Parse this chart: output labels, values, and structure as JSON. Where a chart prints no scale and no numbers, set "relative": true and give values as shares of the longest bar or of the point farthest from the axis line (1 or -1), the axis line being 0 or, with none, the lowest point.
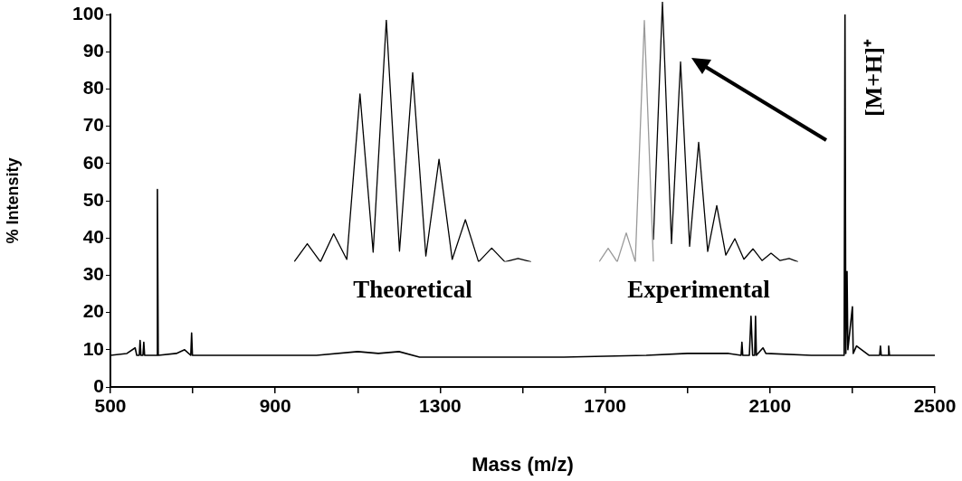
{
  "chart_data": [
    {
      "type": "line",
      "xlabel": "Mass (m/z)",
      "ylabel": "% Intensity",
      "xlim": [
        500,
        2500
      ],
      "ylim": [
        0,
        100
      ],
      "xticks": [
        500,
        {
          "value": 700,
          "label": null
        },
        900,
        {
          "value": 1100,
          "label": null
        },
        1300,
        {
          "value": 1500,
          "label": null
        },
        1700,
        {
          "value": 1900,
          "label": null
        },
        2100,
        {
          "value": 2300,
          "label": null
        },
        2500
      ],
      "yticks": [
        0,
        10,
        20,
        30,
        40,
        50,
        60,
        70,
        80,
        90,
        100
      ],
      "x": [
        500,
        540,
        560,
        564,
        570,
        572,
        574,
        579,
        581,
        583,
        612,
        614,
        616,
        660,
        680,
        695,
        697,
        699,
        800,
        900,
        1000,
        1100,
        1150,
        1200,
        1250,
        1400,
        1600,
        1800,
        1900,
        2000,
        2030,
        2032,
        2034,
        2050,
        2054,
        2058,
        2063,
        2065,
        2067,
        2083,
        2090,
        2200,
        2280,
        2282,
        2284,
        2287,
        2289,
        2300,
        2302,
        2310,
        2340,
        2366,
        2368,
        2370,
        2386,
        2388,
        2390,
        2450,
        2500
      ],
      "series": [
        {
          "color": "#000000",
          "values": [
            8.5,
            9,
            10.5,
            8.5,
            8.5,
            12.5,
            8.5,
            8.5,
            12,
            8.5,
            8.5,
            53,
            8.5,
            9,
            10,
            8.5,
            14.5,
            8.5,
            8.5,
            8.5,
            8.5,
            9.5,
            9,
            9.5,
            8,
            8,
            8,
            8.5,
            9,
            9,
            8.5,
            12,
            8.5,
            8.5,
            19,
            8.5,
            8.5,
            19,
            8.5,
            10.5,
            9,
            8.5,
            8.5,
            100,
            9,
            31,
            10,
            21.5,
            9,
            11,
            8.5,
            8.5,
            11,
            8.5,
            8.5,
            11,
            8.5,
            8.5,
            8.5
          ]
        }
      ],
      "annotations": [
        {
          "text": "[M+H]⁺",
          "x": 2282,
          "y": 100
        }
      ]
    },
    {
      "type": "line",
      "relative": true,
      "xlabel": "Theoretical",
      "categories": [
        null,
        null,
        null,
        null,
        null,
        null,
        null,
        null,
        null,
        null,
        null,
        null,
        null,
        null,
        null,
        null,
        null,
        null,
        null
      ],
      "series": [
        {
          "color": "#000000",
          "values": [
            0,
            0.075,
            0,
            0.116,
            0.01,
            0.694,
            0.04,
            1,
            0.044,
            0.782,
            0.024,
            0.424,
            0.01,
            0.174,
            0,
            0.057,
            0,
            0.014,
            0
          ]
        }
      ]
    },
    {
      "type": "line",
      "relative": true,
      "xlabel": "Experimental",
      "categories": [
        null,
        null,
        null,
        null,
        null,
        null,
        null,
        null,
        null,
        null,
        null,
        null,
        null,
        null,
        null,
        null,
        null,
        null,
        null,
        null,
        null,
        null,
        null
      ],
      "series": [
        {
          "color": "#999999",
          "values": [
            0,
            0.052,
            0,
            0.111,
            0,
            0.928,
            0,
            null,
            null,
            null,
            null,
            null,
            null,
            null,
            null,
            null,
            null,
            null,
            null,
            null,
            null,
            null,
            null
          ]
        },
        {
          "color": "#000000",
          "values": [
            null,
            null,
            null,
            null,
            null,
            null,
            0.085,
            1,
            0.07,
            0.769,
            0.06,
            0.46,
            0.04,
            0.216,
            0.026,
            0.089,
            0.01,
            0.05,
            0.005,
            0.033,
            0.005,
            0.013,
            0
          ]
        }
      ]
    }
  ]
}
